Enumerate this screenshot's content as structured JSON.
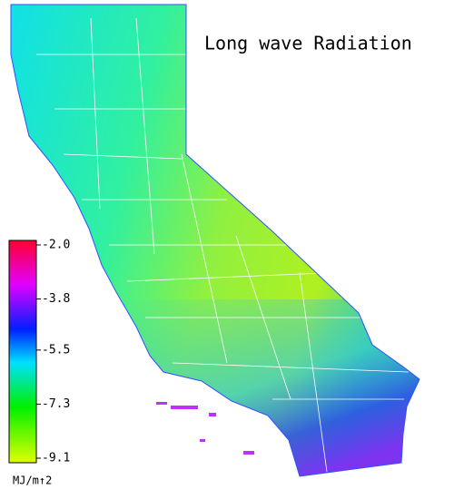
{
  "title": "Long wave Radiation",
  "colorbar": {
    "range": [
      -9.1,
      -2
    ],
    "ticks": [
      {
        "value": -2,
        "label": "-2.0"
      },
      -3.8,
      -5.5,
      -7.3,
      -9.1
    ],
    "unit": "MJ/m↑2"
  }
}
